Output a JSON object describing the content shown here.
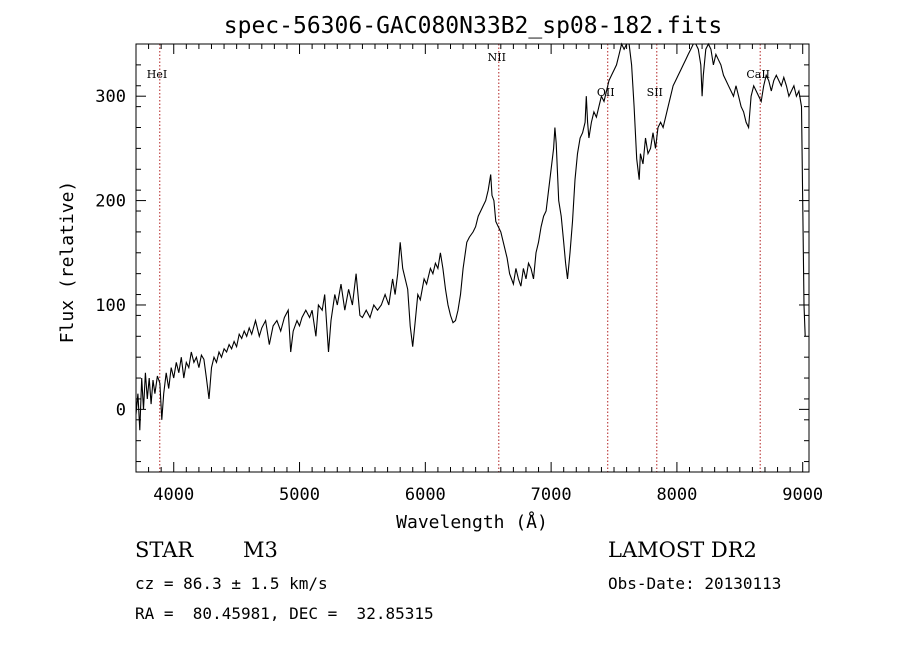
{
  "chart_data": {
    "type": "line",
    "title": "spec-56306-GAC080N33B2_sp08-182.fits",
    "xlabel": "Wavelength (Å)",
    "ylabel": "Flux (relative)",
    "xlim": [
      3700,
      9050
    ],
    "ylim": [
      -60,
      350
    ],
    "xticks": [
      4000,
      5000,
      6000,
      7000,
      8000,
      9000
    ],
    "yticks": [
      0,
      100,
      200,
      300
    ],
    "series": [
      {
        "points": [
          [
            3700,
            -5
          ],
          [
            3715,
            15
          ],
          [
            3730,
            -20
          ],
          [
            3745,
            30
          ],
          [
            3760,
            0
          ],
          [
            3775,
            35
          ],
          [
            3790,
            10
          ],
          [
            3805,
            30
          ],
          [
            3820,
            5
          ],
          [
            3835,
            28
          ],
          [
            3850,
            15
          ],
          [
            3870,
            32
          ],
          [
            3890,
            25
          ],
          [
            3905,
            -10
          ],
          [
            3920,
            15
          ],
          [
            3940,
            35
          ],
          [
            3960,
            20
          ],
          [
            3980,
            40
          ],
          [
            4000,
            30
          ],
          [
            4020,
            45
          ],
          [
            4040,
            35
          ],
          [
            4060,
            50
          ],
          [
            4080,
            30
          ],
          [
            4100,
            45
          ],
          [
            4120,
            40
          ],
          [
            4140,
            55
          ],
          [
            4160,
            45
          ],
          [
            4180,
            50
          ],
          [
            4200,
            40
          ],
          [
            4220,
            52
          ],
          [
            4240,
            48
          ],
          [
            4260,
            30
          ],
          [
            4280,
            10
          ],
          [
            4300,
            40
          ],
          [
            4320,
            50
          ],
          [
            4340,
            45
          ],
          [
            4360,
            55
          ],
          [
            4380,
            50
          ],
          [
            4400,
            58
          ],
          [
            4420,
            55
          ],
          [
            4440,
            62
          ],
          [
            4460,
            58
          ],
          [
            4480,
            65
          ],
          [
            4500,
            60
          ],
          [
            4520,
            72
          ],
          [
            4540,
            68
          ],
          [
            4560,
            75
          ],
          [
            4580,
            70
          ],
          [
            4600,
            78
          ],
          [
            4620,
            72
          ],
          [
            4650,
            85
          ],
          [
            4680,
            70
          ],
          [
            4700,
            78
          ],
          [
            4730,
            85
          ],
          [
            4760,
            62
          ],
          [
            4790,
            80
          ],
          [
            4820,
            85
          ],
          [
            4850,
            75
          ],
          [
            4880,
            88
          ],
          [
            4910,
            95
          ],
          [
            4930,
            55
          ],
          [
            4950,
            75
          ],
          [
            4980,
            85
          ],
          [
            5000,
            80
          ],
          [
            5020,
            88
          ],
          [
            5050,
            95
          ],
          [
            5080,
            88
          ],
          [
            5100,
            95
          ],
          [
            5130,
            70
          ],
          [
            5150,
            100
          ],
          [
            5180,
            95
          ],
          [
            5200,
            110
          ],
          [
            5230,
            55
          ],
          [
            5250,
            85
          ],
          [
            5280,
            110
          ],
          [
            5300,
            100
          ],
          [
            5330,
            120
          ],
          [
            5360,
            95
          ],
          [
            5390,
            115
          ],
          [
            5420,
            100
          ],
          [
            5450,
            130
          ],
          [
            5480,
            90
          ],
          [
            5500,
            88
          ],
          [
            5530,
            95
          ],
          [
            5560,
            88
          ],
          [
            5590,
            100
          ],
          [
            5620,
            95
          ],
          [
            5650,
            100
          ],
          [
            5680,
            110
          ],
          [
            5710,
            100
          ],
          [
            5740,
            125
          ],
          [
            5760,
            110
          ],
          [
            5780,
            130
          ],
          [
            5800,
            160
          ],
          [
            5820,
            135
          ],
          [
            5840,
            125
          ],
          [
            5860,
            115
          ],
          [
            5880,
            80
          ],
          [
            5900,
            60
          ],
          [
            5920,
            85
          ],
          [
            5940,
            110
          ],
          [
            5960,
            105
          ],
          [
            5990,
            125
          ],
          [
            6010,
            120
          ],
          [
            6040,
            135
          ],
          [
            6060,
            130
          ],
          [
            6080,
            140
          ],
          [
            6100,
            135
          ],
          [
            6120,
            150
          ],
          [
            6140,
            135
          ],
          [
            6160,
            115
          ],
          [
            6180,
            100
          ],
          [
            6200,
            90
          ],
          [
            6220,
            83
          ],
          [
            6240,
            85
          ],
          [
            6260,
            95
          ],
          [
            6280,
            110
          ],
          [
            6300,
            135
          ],
          [
            6330,
            160
          ],
          [
            6350,
            165
          ],
          [
            6380,
            170
          ],
          [
            6400,
            175
          ],
          [
            6420,
            185
          ],
          [
            6440,
            190
          ],
          [
            6460,
            195
          ],
          [
            6480,
            200
          ],
          [
            6500,
            210
          ],
          [
            6520,
            225
          ],
          [
            6530,
            205
          ],
          [
            6545,
            200
          ],
          [
            6560,
            180
          ],
          [
            6580,
            175
          ],
          [
            6600,
            170
          ],
          [
            6620,
            160
          ],
          [
            6650,
            145
          ],
          [
            6670,
            130
          ],
          [
            6700,
            120
          ],
          [
            6720,
            135
          ],
          [
            6740,
            125
          ],
          [
            6760,
            118
          ],
          [
            6780,
            135
          ],
          [
            6800,
            125
          ],
          [
            6820,
            140
          ],
          [
            6840,
            135
          ],
          [
            6860,
            125
          ],
          [
            6880,
            150
          ],
          [
            6900,
            160
          ],
          [
            6920,
            175
          ],
          [
            6940,
            185
          ],
          [
            6960,
            190
          ],
          [
            6980,
            210
          ],
          [
            7000,
            230
          ],
          [
            7020,
            250
          ],
          [
            7030,
            270
          ],
          [
            7040,
            255
          ],
          [
            7060,
            200
          ],
          [
            7080,
            185
          ],
          [
            7100,
            160
          ],
          [
            7115,
            140
          ],
          [
            7130,
            125
          ],
          [
            7150,
            150
          ],
          [
            7170,
            180
          ],
          [
            7190,
            220
          ],
          [
            7210,
            245
          ],
          [
            7230,
            260
          ],
          [
            7250,
            265
          ],
          [
            7270,
            275
          ],
          [
            7280,
            300
          ],
          [
            7290,
            275
          ],
          [
            7300,
            260
          ],
          [
            7320,
            275
          ],
          [
            7340,
            285
          ],
          [
            7360,
            280
          ],
          [
            7380,
            290
          ],
          [
            7400,
            300
          ],
          [
            7420,
            295
          ],
          [
            7440,
            305
          ],
          [
            7460,
            315
          ],
          [
            7480,
            320
          ],
          [
            7500,
            325
          ],
          [
            7520,
            330
          ],
          [
            7540,
            340
          ],
          [
            7560,
            350
          ],
          [
            7580,
            345
          ],
          [
            7600,
            355
          ],
          [
            7620,
            360
          ],
          [
            7640,
            330
          ],
          [
            7660,
            290
          ],
          [
            7680,
            240
          ],
          [
            7700,
            220
          ],
          [
            7710,
            245
          ],
          [
            7730,
            235
          ],
          [
            7750,
            260
          ],
          [
            7770,
            245
          ],
          [
            7790,
            250
          ],
          [
            7810,
            265
          ],
          [
            7830,
            250
          ],
          [
            7850,
            270
          ],
          [
            7870,
            275
          ],
          [
            7890,
            270
          ],
          [
            7910,
            280
          ],
          [
            7930,
            290
          ],
          [
            7950,
            300
          ],
          [
            7970,
            310
          ],
          [
            7990,
            315
          ],
          [
            8010,
            320
          ],
          [
            8030,
            325
          ],
          [
            8050,
            330
          ],
          [
            8070,
            335
          ],
          [
            8090,
            340
          ],
          [
            8110,
            345
          ],
          [
            8130,
            355
          ],
          [
            8150,
            360
          ],
          [
            8170,
            345
          ],
          [
            8190,
            330
          ],
          [
            8200,
            300
          ],
          [
            8210,
            320
          ],
          [
            8230,
            345
          ],
          [
            8250,
            350
          ],
          [
            8270,
            345
          ],
          [
            8290,
            330
          ],
          [
            8310,
            340
          ],
          [
            8330,
            335
          ],
          [
            8350,
            330
          ],
          [
            8370,
            320
          ],
          [
            8390,
            315
          ],
          [
            8410,
            310
          ],
          [
            8430,
            305
          ],
          [
            8450,
            300
          ],
          [
            8470,
            310
          ],
          [
            8490,
            300
          ],
          [
            8510,
            290
          ],
          [
            8530,
            285
          ],
          [
            8550,
            275
          ],
          [
            8570,
            270
          ],
          [
            8590,
            300
          ],
          [
            8610,
            310
          ],
          [
            8630,
            305
          ],
          [
            8650,
            300
          ],
          [
            8670,
            295
          ],
          [
            8690,
            310
          ],
          [
            8710,
            320
          ],
          [
            8730,
            315
          ],
          [
            8750,
            305
          ],
          [
            8770,
            315
          ],
          [
            8790,
            320
          ],
          [
            8810,
            315
          ],
          [
            8830,
            310
          ],
          [
            8850,
            318
          ],
          [
            8870,
            310
          ],
          [
            8890,
            300
          ],
          [
            8910,
            305
          ],
          [
            8930,
            310
          ],
          [
            8950,
            300
          ],
          [
            8970,
            305
          ],
          [
            8990,
            290
          ],
          [
            9000,
            200
          ],
          [
            9010,
            100
          ],
          [
            9020,
            70
          ]
        ]
      }
    ],
    "lines": [
      {
        "label": "HeI",
        "x": 3889
      },
      {
        "label": "NII",
        "x": 6584
      },
      {
        "label": "OII",
        "x": 7450
      },
      {
        "label": "SII",
        "x": 7840
      },
      {
        "label": "CaII",
        "x": 8662
      }
    ],
    "line_color": "#b22222",
    "spectrum_color": "#000000"
  },
  "info": {
    "object_type": "STAR",
    "subclass": "M3",
    "survey": "LAMOST DR2",
    "cz": "cz = 86.3 ± 1.5 km/s",
    "obs_date": "Obs-Date: 20130113",
    "coords": "RA =  80.45981, DEC =  32.85315"
  }
}
